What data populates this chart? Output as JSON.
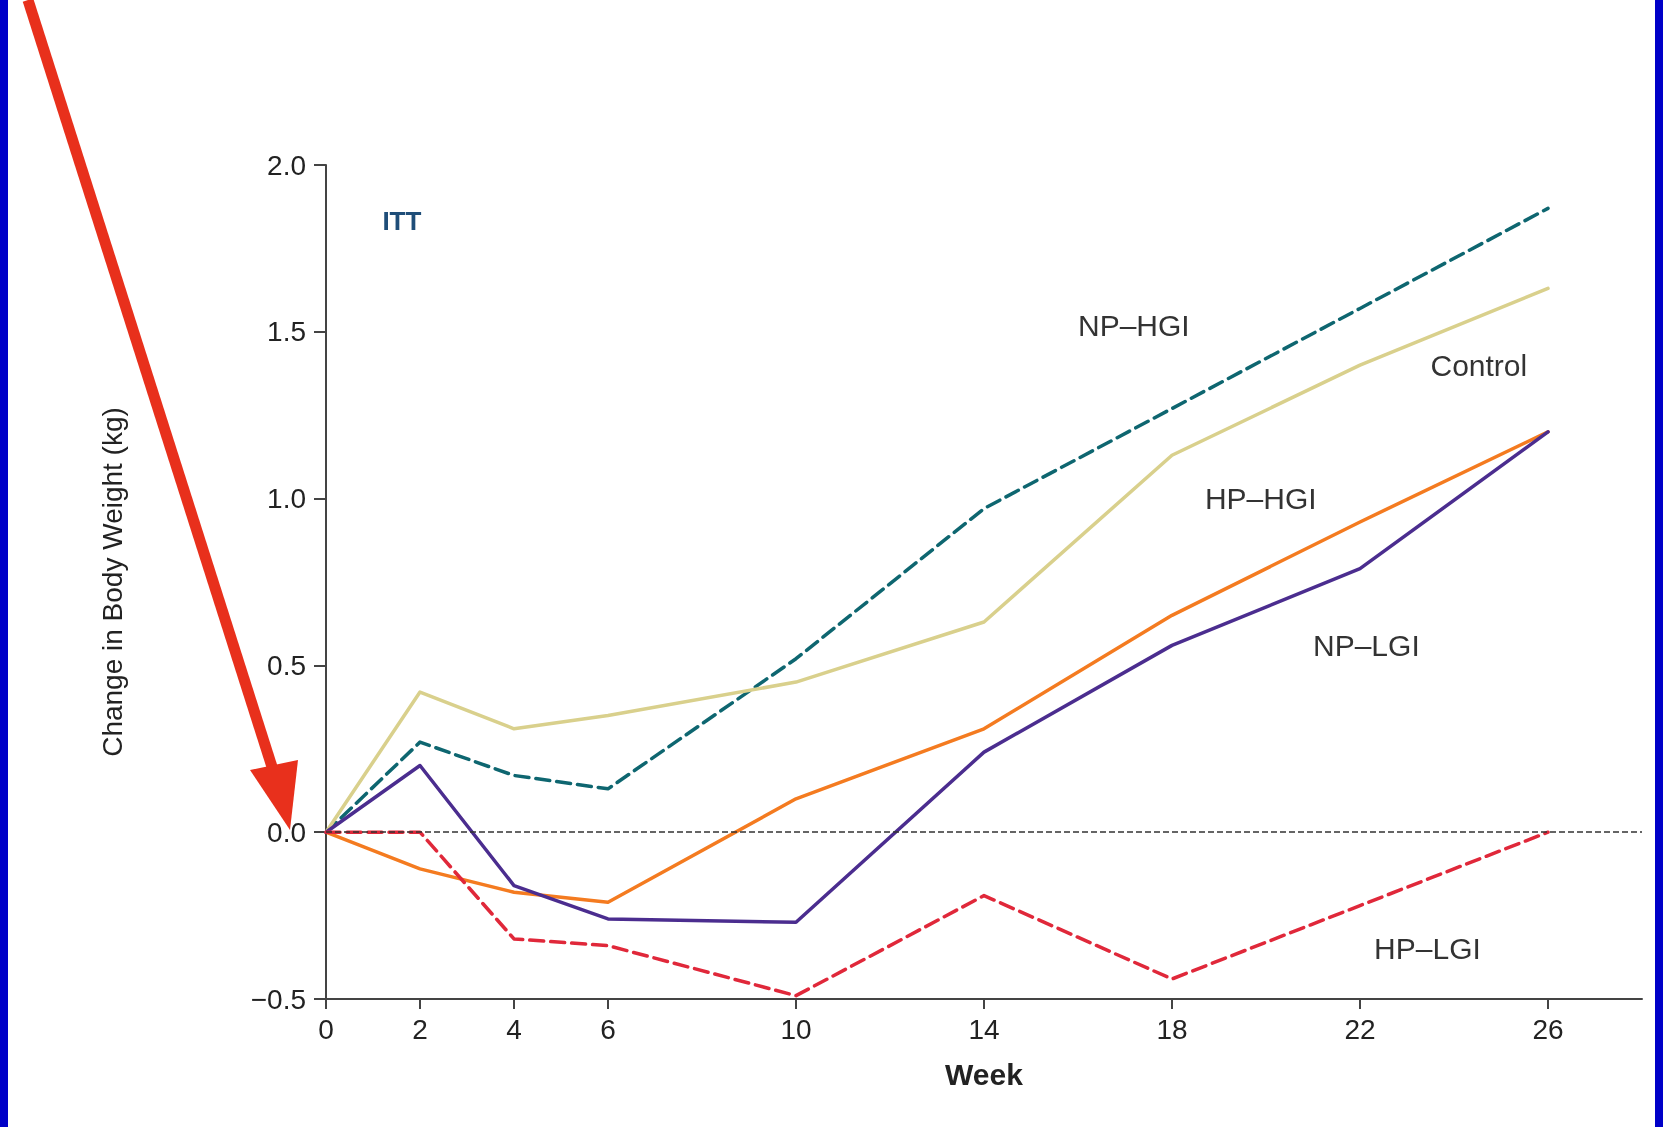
{
  "chart_data": {
    "type": "line",
    "xlabel": "Week",
    "ylabel": "Change in Body Weight (kg)",
    "annotations": [
      "ITT"
    ],
    "x": [
      0,
      2,
      4,
      6,
      10,
      14,
      18,
      22,
      26
    ],
    "xlim": [
      0,
      28
    ],
    "xticks": [
      0,
      2,
      4,
      6,
      10,
      14,
      18,
      22,
      26
    ],
    "ylim": [
      -0.5,
      2
    ],
    "yticks": [
      {
        "value": -0.5,
        "label": "−0.5"
      },
      {
        "value": 0,
        "label": "0.0"
      },
      0.5,
      {
        "value": 1,
        "label": "1.0"
      },
      1.5,
      {
        "value": 2,
        "label": "2.0"
      }
    ],
    "grid": false,
    "legend": false,
    "marker": "none",
    "ref_lines": [
      {
        "axis": "y",
        "value": 0,
        "color": "#333333",
        "line_style": "dashed"
      }
    ],
    "series": [
      {
        "name": "NP–HGI",
        "color": "#0e6670",
        "line_style": "dashed",
        "values": [
          0,
          0.27,
          0.17,
          0.13,
          0.52,
          0.97,
          1.27,
          1.57,
          1.87
        ]
      },
      {
        "name": "Control",
        "color": "#d9d08c",
        "line_style": "solid",
        "values": [
          0,
          0.42,
          0.31,
          0.35,
          0.45,
          0.63,
          1.13,
          1.4,
          1.63
        ]
      },
      {
        "name": "HP–HGI",
        "color": "#f47b20",
        "line_style": "solid",
        "values": [
          0,
          -0.11,
          -0.18,
          -0.21,
          0.1,
          0.31,
          0.65,
          0.93,
          1.2
        ]
      },
      {
        "name": "NP–LGI",
        "color": "#4b2d8f",
        "line_style": "solid",
        "values": [
          0,
          0.2,
          -0.16,
          -0.26,
          -0.27,
          0.24,
          0.56,
          0.79,
          1.2
        ]
      },
      {
        "name": "HP–LGI",
        "color": "#e0283a",
        "line_style": "dashed",
        "values": [
          0,
          0,
          -0.32,
          -0.34,
          -0.49,
          -0.19,
          -0.44,
          -0.22,
          0
        ]
      }
    ]
  }
}
